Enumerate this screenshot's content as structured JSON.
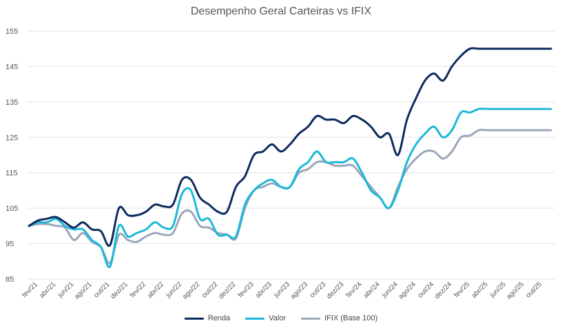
{
  "chart_data": {
    "type": "line",
    "title": "Desempenho Geral Carteiras vs IFIX",
    "xlabel": "",
    "ylabel": "",
    "ylim": [
      85,
      155
    ],
    "yticks": [
      85,
      95,
      105,
      115,
      125,
      135,
      145,
      155
    ],
    "grid": true,
    "legend_position": "bottom",
    "x": [
      "jan/21",
      "fev/21",
      "mar/21",
      "abr/21",
      "mai/21",
      "jun/21",
      "jul/21",
      "ago/21",
      "set/21",
      "out/21",
      "nov/21",
      "dez/21",
      "jan/22",
      "fev/22",
      "mar/22",
      "abr/22",
      "mai/22",
      "jun/22",
      "jul/22",
      "ago/22",
      "set/22",
      "out/22",
      "nov/22",
      "dez/22",
      "jan/23",
      "fev/23",
      "mar/23",
      "abr/23",
      "mai/23",
      "jun/23",
      "jul/23",
      "ago/23",
      "set/23",
      "out/23",
      "nov/23",
      "dez/23",
      "jan/24",
      "fev/24",
      "mar/24",
      "abr/24",
      "mai/24",
      "jun/24",
      "jul/24",
      "ago/24",
      "set/24",
      "out/24",
      "nov/24",
      "dez/24",
      "jan/25",
      "fev/25",
      "mar/25",
      "abr/25",
      "mai/25",
      "jun/25",
      "jul/25",
      "ago/25",
      "set/25",
      "out/25",
      "nov/25"
    ],
    "xtick_labels": [
      "fev/21",
      "abr/21",
      "jun/21",
      "ago/21",
      "out/21",
      "dez/21",
      "fev/22",
      "abr/22",
      "jun/22",
      "ago/22",
      "out/22",
      "dez/22",
      "fev/23",
      "abr/23",
      "jun/23",
      "ago/23",
      "out/23",
      "dez/23",
      "fev/24",
      "abr/24",
      "jun/24",
      "ago/24",
      "out/24",
      "dez/24",
      "fev/25",
      "abr/25",
      "jun/25",
      "ago/25",
      "out/25"
    ],
    "series": [
      {
        "name": "Renda",
        "color": "#0d2a5e",
        "values": [
          100,
          101.5,
          102,
          102.5,
          101,
          99.5,
          101,
          99,
          98.5,
          94.5,
          105,
          103,
          103,
          104,
          106,
          105.5,
          106,
          113,
          113,
          108,
          106,
          104,
          104,
          111,
          114,
          120,
          121,
          123,
          121,
          123,
          126,
          128,
          131,
          130,
          130,
          129,
          131,
          130,
          128,
          125,
          126,
          120,
          130,
          136,
          141,
          143,
          141,
          145,
          148,
          150,
          150,
          150,
          150,
          150,
          150,
          150,
          150,
          150,
          150
        ]
      },
      {
        "name": "Valor",
        "color": "#1cb8d8",
        "values": [
          100,
          101,
          101,
          102,
          100,
          99,
          99,
          96,
          94,
          88.5,
          100,
          97,
          98,
          99,
          101,
          99.5,
          100,
          109,
          110,
          102,
          102,
          97.5,
          97.5,
          97,
          106,
          110,
          112,
          113,
          111,
          111,
          116,
          118,
          121,
          118,
          118,
          118,
          119,
          115,
          110,
          108,
          105,
          110,
          118,
          123,
          126,
          128,
          125,
          127,
          132,
          132,
          133,
          133,
          133,
          133,
          133,
          133,
          133,
          133,
          133
        ]
      },
      {
        "name": "IFIX (Base 100)",
        "color": "#9aa6b9",
        "values": [
          100,
          100.5,
          100.5,
          100,
          99.5,
          96,
          98,
          95.5,
          94,
          89.5,
          97.5,
          96,
          95.5,
          97,
          98,
          97.5,
          98,
          103.5,
          104,
          100,
          99.5,
          98,
          97.5,
          96.5,
          105,
          110,
          111,
          112,
          111,
          111,
          115,
          116,
          118,
          118,
          117,
          117,
          117,
          114,
          111,
          108,
          105,
          111,
          116,
          119,
          121,
          121,
          119,
          121,
          125,
          125.5,
          127,
          127,
          127,
          127,
          127,
          127,
          127,
          127,
          127
        ]
      }
    ]
  }
}
